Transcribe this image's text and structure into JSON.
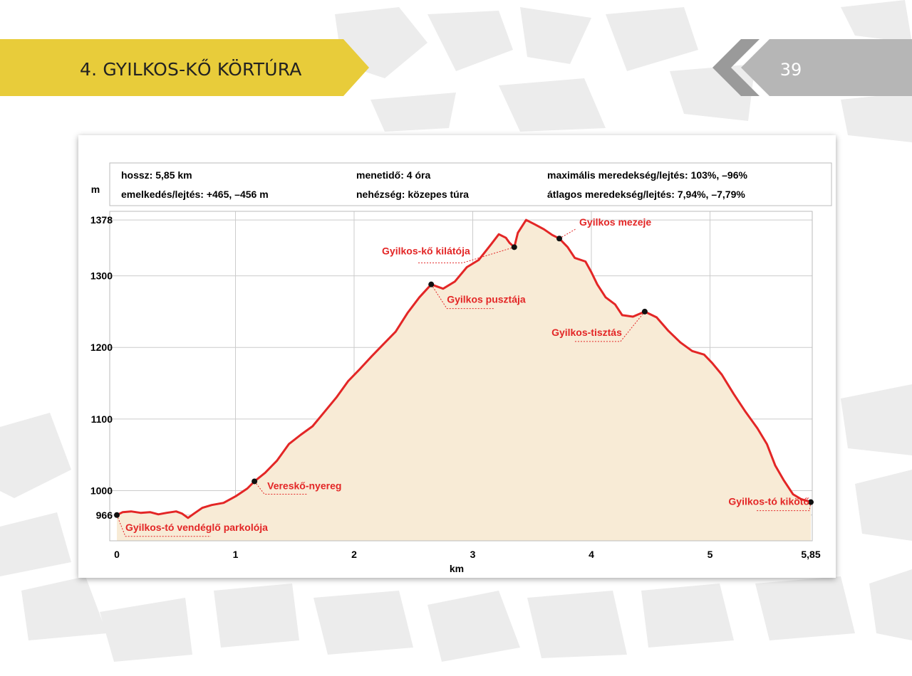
{
  "header": {
    "title": "4. GYILKOS-KŐ KÖRTÚRA",
    "page_number": "39"
  },
  "colors": {
    "accent_yellow": "#e8cc3a",
    "tab_gray": "#b6b6b6",
    "profile_line": "#e32626",
    "profile_fill": "#f8ebd6",
    "label_red": "#e32626"
  },
  "stats": {
    "length": "hossz: 5,85 km",
    "elevation": "emelkedés/lejtés: +465, –456 m",
    "time": "menetidő: 4 óra",
    "difficulty": "nehézség: közepes túra",
    "max_slope": "maximális meredekség/lejtés: 103%, –96%",
    "avg_slope": "átlagos meredekség/lejtés: 7,94%, –7,79%"
  },
  "chart_data": {
    "type": "area",
    "xlabel": "km",
    "ylabel": "m",
    "xlim": [
      0,
      5.85
    ],
    "ylim": [
      930,
      1390
    ],
    "x_ticks": [
      0,
      1,
      2,
      3,
      4,
      5,
      5.85
    ],
    "x_tick_labels": [
      "0",
      "1",
      "2",
      "3",
      "4",
      "5",
      "5,85"
    ],
    "y_ticks": [
      966,
      1000,
      1100,
      1200,
      1300,
      1378
    ],
    "y_tick_labels": [
      "966",
      "1000",
      "1100",
      "1200",
      "1300",
      "1378"
    ],
    "grid": true,
    "profile": [
      [
        0,
        966
      ],
      [
        0.05,
        970
      ],
      [
        0.12,
        971
      ],
      [
        0.2,
        969
      ],
      [
        0.28,
        970
      ],
      [
        0.35,
        967
      ],
      [
        0.42,
        969
      ],
      [
        0.5,
        971
      ],
      [
        0.55,
        968
      ],
      [
        0.6,
        962
      ],
      [
        0.65,
        968
      ],
      [
        0.72,
        976
      ],
      [
        0.8,
        980
      ],
      [
        0.9,
        983
      ],
      [
        1.0,
        992
      ],
      [
        1.1,
        1003
      ],
      [
        1.16,
        1013
      ],
      [
        1.25,
        1025
      ],
      [
        1.35,
        1042
      ],
      [
        1.45,
        1065
      ],
      [
        1.55,
        1078
      ],
      [
        1.65,
        1090
      ],
      [
        1.75,
        1110
      ],
      [
        1.85,
        1130
      ],
      [
        1.95,
        1153
      ],
      [
        2.05,
        1170
      ],
      [
        2.15,
        1188
      ],
      [
        2.25,
        1205
      ],
      [
        2.35,
        1222
      ],
      [
        2.45,
        1248
      ],
      [
        2.55,
        1270
      ],
      [
        2.65,
        1288
      ],
      [
        2.75,
        1282
      ],
      [
        2.85,
        1292
      ],
      [
        2.95,
        1312
      ],
      [
        3.05,
        1322
      ],
      [
        3.15,
        1343
      ],
      [
        3.22,
        1358
      ],
      [
        3.28,
        1353
      ],
      [
        3.31,
        1346
      ],
      [
        3.35,
        1340
      ],
      [
        3.38,
        1360
      ],
      [
        3.45,
        1378
      ],
      [
        3.52,
        1372
      ],
      [
        3.6,
        1365
      ],
      [
        3.67,
        1357
      ],
      [
        3.73,
        1352
      ],
      [
        3.8,
        1340
      ],
      [
        3.86,
        1325
      ],
      [
        3.95,
        1320
      ],
      [
        4.0,
        1305
      ],
      [
        4.05,
        1288
      ],
      [
        4.12,
        1270
      ],
      [
        4.2,
        1260
      ],
      [
        4.26,
        1245
      ],
      [
        4.35,
        1243
      ],
      [
        4.45,
        1250
      ],
      [
        4.55,
        1242
      ],
      [
        4.65,
        1223
      ],
      [
        4.75,
        1207
      ],
      [
        4.85,
        1195
      ],
      [
        4.95,
        1190
      ],
      [
        5.02,
        1178
      ],
      [
        5.1,
        1162
      ],
      [
        5.2,
        1135
      ],
      [
        5.3,
        1110
      ],
      [
        5.4,
        1087
      ],
      [
        5.48,
        1065
      ],
      [
        5.55,
        1035
      ],
      [
        5.62,
        1015
      ],
      [
        5.7,
        995
      ],
      [
        5.77,
        988
      ],
      [
        5.85,
        984
      ]
    ],
    "waypoints": [
      {
        "name": "Gyilkos-tó vendéglő parkolója",
        "x": 0,
        "y": 966
      },
      {
        "name": "Vereskő-nyereg",
        "x": 1.16,
        "y": 1013
      },
      {
        "name": "Gyilkos pusztája",
        "x": 2.65,
        "y": 1288
      },
      {
        "name": "Gyilkos-kő kilátója",
        "x": 3.35,
        "y": 1340
      },
      {
        "name": "Gyilkos mezeje",
        "x": 3.73,
        "y": 1352
      },
      {
        "name": "Gyilkos-tisztás",
        "x": 4.45,
        "y": 1250
      },
      {
        "name": "Gyilkos-tó kikötő",
        "x": 5.85,
        "y": 984
      }
    ]
  }
}
